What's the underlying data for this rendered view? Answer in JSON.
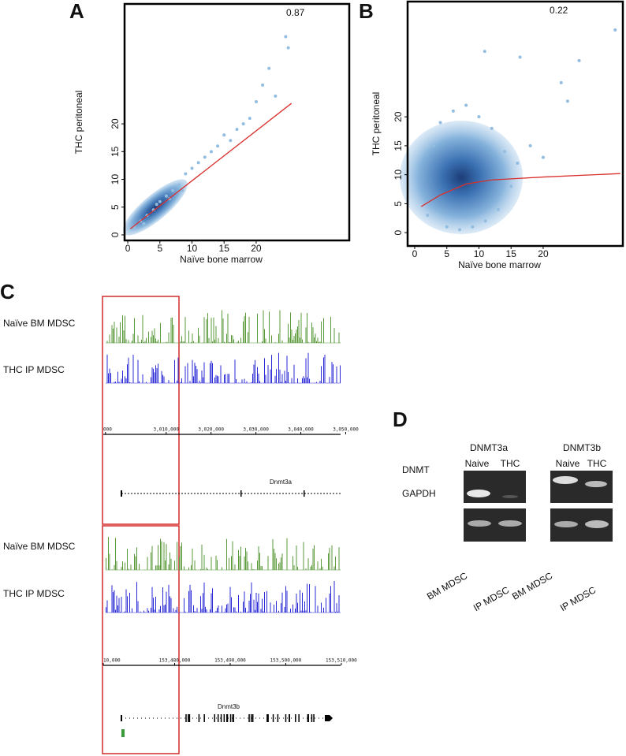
{
  "panel_labels": [
    "A",
    "B",
    "C",
    "D"
  ],
  "chart_data": [
    {
      "type": "scatter",
      "annotation": "0.87",
      "xlabel": "Naïve  bone marrow",
      "ylabel": "THC  peritoneal",
      "xlim": [
        -0.5,
        34.5
      ],
      "ylim": [
        -1,
        41.6
      ],
      "xticks": [
        0,
        5,
        10,
        15,
        20
      ],
      "yticks": [
        0,
        5,
        10,
        15,
        20
      ],
      "color": "#93bde0",
      "fit_color": "#d9302c",
      "x": [
        1,
        2,
        3,
        4,
        5,
        6,
        7,
        8,
        2.5,
        4.5,
        6.5,
        8.5,
        9,
        10,
        11,
        12,
        13,
        14,
        15,
        16,
        17,
        18,
        19,
        20,
        21,
        22,
        23,
        24.6,
        25
      ],
      "y": [
        1.5,
        2.5,
        3.5,
        4.5,
        6,
        7,
        8,
        9,
        2,
        5.5,
        6.5,
        8,
        11,
        12,
        13,
        14,
        15,
        16,
        18,
        17,
        19,
        20,
        21,
        24,
        27,
        30,
        25,
        35.7,
        33.7
      ],
      "fit_x": [
        0.4,
        25.5
      ],
      "fit_y": [
        1.1,
        23.7
      ]
    },
    {
      "type": "scatter",
      "annotation": "0.22",
      "xlabel": "Naïve bone marrow",
      "ylabel": "THC  peritoneal",
      "xlim": [
        -1.1,
        32.4
      ],
      "ylim": [
        -2.3,
        39.9
      ],
      "xticks": [
        0,
        5,
        10,
        15,
        20
      ],
      "yticks": [
        0,
        5,
        10,
        15,
        20
      ],
      "color": "#93bde0",
      "fit_color": "#d9302c",
      "x": [
        2,
        3,
        4,
        6,
        8,
        10,
        12,
        14,
        16,
        5,
        7,
        9,
        11,
        13,
        15,
        10.9,
        16.4,
        25.6,
        31.2,
        22.8,
        23.8,
        18,
        20
      ],
      "y": [
        3,
        15,
        19,
        21,
        22,
        20,
        18,
        14,
        12,
        1,
        0.5,
        1,
        2,
        4,
        8,
        31.3,
        30.3,
        29.7,
        35,
        25.9,
        22.7,
        15,
        13
      ],
      "fit_x": [
        1,
        4,
        8,
        12,
        20,
        32
      ],
      "fit_y": [
        4.5,
        6.5,
        8.4,
        9.1,
        9.6,
        10.2
      ]
    }
  ],
  "tracks": [
    {
      "sample_labels": [
        "Naïve BM MDSC",
        "THC IP MDSC"
      ],
      "ruler": [
        "000",
        "3,010,000",
        "3,020,000",
        "3,030,000",
        "3,040,000",
        "3,050,000"
      ],
      "gene": "Dnmt3a"
    },
    {
      "sample_labels": [
        "Naïve BM MDSC",
        "THC IP MDSC"
      ],
      "ruler": [
        "10,000",
        "153,480,000",
        "153,490,000",
        "153,500,000",
        "153,510,000"
      ],
      "gene": "Dnmt3b"
    }
  ],
  "gel": {
    "genes": [
      "DNMT3a",
      "DNMT3b"
    ],
    "lanes": [
      "Naive",
      "THC"
    ],
    "rows": [
      "DNMT",
      "GAPDH"
    ],
    "samples": [
      "BM MDSC",
      "IP MDSC"
    ]
  }
}
